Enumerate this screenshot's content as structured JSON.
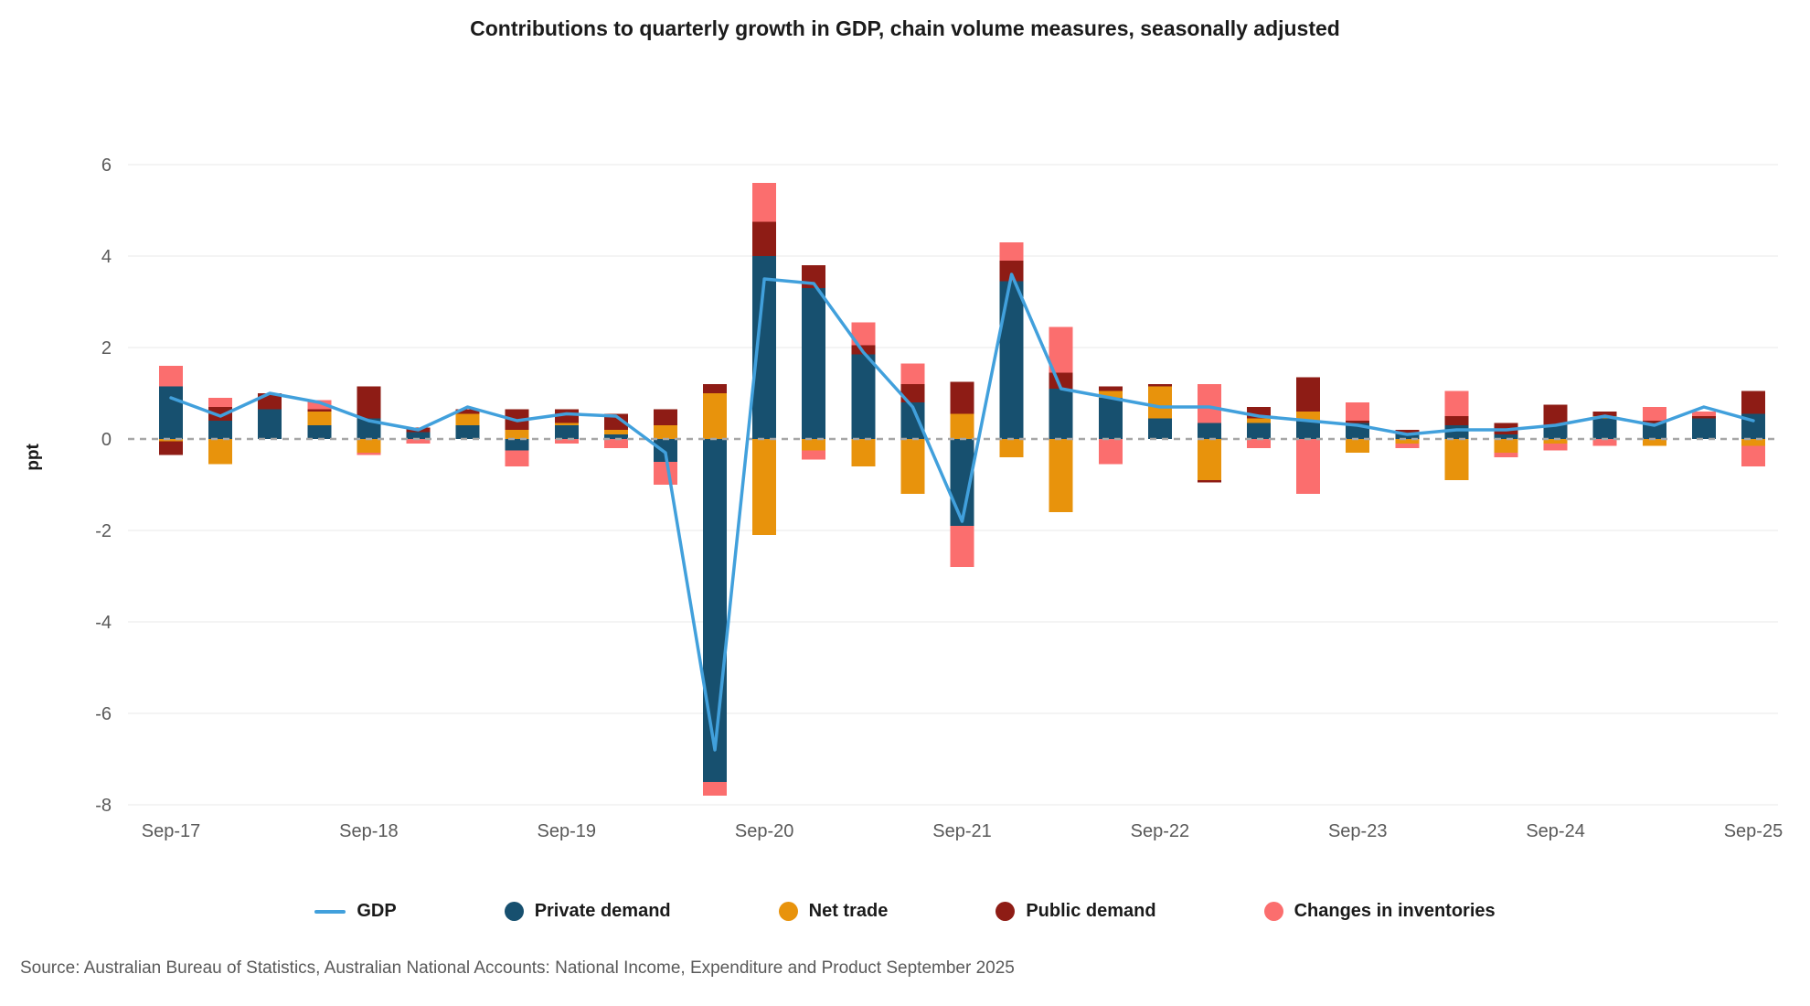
{
  "page": {
    "title": "Contributions to quarterly growth in GDP, chain volume measures, seasonally adjusted",
    "source": "Source: Australian Bureau of Statistics, Australian National Accounts: National Income, Expenditure and Product September 2025"
  },
  "chart_data": {
    "type": "bar",
    "subtype": "stacked-bars-with-line",
    "title": "Contributions to quarterly growth in GDP, chain volume measures, seasonally adjusted",
    "xlabel": "",
    "ylabel": "ppt",
    "ylim": [
      -8,
      6
    ],
    "yticks": [
      6,
      4,
      2,
      0,
      -2,
      -4,
      -6,
      -8
    ],
    "grid": true,
    "zero_line": true,
    "legend_position": "bottom",
    "categories": [
      "Sep-17",
      "Dec-17",
      "Mar-18",
      "Jun-18",
      "Sep-18",
      "Dec-18",
      "Mar-19",
      "Jun-19",
      "Sep-19",
      "Dec-19",
      "Mar-20",
      "Jun-20",
      "Sep-20",
      "Dec-20",
      "Mar-21",
      "Jun-21",
      "Sep-21",
      "Dec-21",
      "Mar-22",
      "Jun-22",
      "Sep-22",
      "Dec-22",
      "Mar-23",
      "Jun-23",
      "Sep-23",
      "Dec-23",
      "Mar-24",
      "Jun-24",
      "Sep-24",
      "Dec-24",
      "Mar-25",
      "Jun-25",
      "Sep-25"
    ],
    "xtick_labels_shown": [
      "Sep-17",
      "Sep-18",
      "Sep-19",
      "Sep-20",
      "Sep-21",
      "Sep-22",
      "Sep-23",
      "Sep-24",
      "Sep-25"
    ],
    "series": [
      {
        "name": "Private demand",
        "color": "#17506f",
        "values": [
          1.15,
          0.4,
          0.65,
          0.3,
          0.45,
          0.15,
          0.3,
          -0.25,
          0.3,
          0.1,
          -0.5,
          -7.5,
          4.0,
          3.3,
          1.85,
          0.8,
          -1.9,
          3.45,
          1.1,
          0.9,
          0.45,
          0.35,
          0.35,
          0.4,
          0.35,
          0.1,
          0.3,
          0.1,
          0.3,
          0.45,
          0.35,
          0.45,
          0.55
        ]
      },
      {
        "name": "Net trade",
        "color": "#e8930c",
        "values": [
          -0.05,
          -0.55,
          0.0,
          0.3,
          -0.3,
          0.0,
          0.25,
          0.2,
          0.05,
          0.1,
          0.3,
          1.0,
          -2.1,
          -0.25,
          -0.6,
          -1.2,
          0.55,
          -0.4,
          -1.6,
          0.15,
          0.7,
          -0.9,
          0.1,
          0.2,
          -0.3,
          -0.1,
          -0.9,
          -0.3,
          -0.1,
          0.05,
          -0.15,
          0.0,
          -0.15
        ]
      },
      {
        "name": "Public demand",
        "color": "#8e1c15",
        "values": [
          -0.3,
          0.3,
          0.35,
          0.05,
          0.7,
          0.1,
          0.1,
          0.45,
          0.3,
          0.35,
          0.35,
          0.2,
          0.75,
          0.5,
          0.2,
          0.4,
          0.7,
          0.45,
          0.35,
          0.1,
          0.05,
          -0.05,
          0.25,
          0.75,
          0.05,
          0.1,
          0.2,
          0.25,
          0.45,
          0.1,
          0.05,
          0.05,
          0.5
        ]
      },
      {
        "name": "Changes in inventories",
        "color": "#fb6e6e",
        "values": [
          0.45,
          0.2,
          0.0,
          0.2,
          -0.05,
          -0.1,
          0.0,
          -0.35,
          -0.1,
          -0.2,
          -0.5,
          -0.3,
          0.85,
          -0.2,
          0.5,
          0.45,
          -0.9,
          0.4,
          1.0,
          -0.55,
          0.0,
          0.85,
          -0.2,
          -1.2,
          0.4,
          -0.1,
          0.55,
          -0.1,
          -0.15,
          -0.15,
          0.3,
          0.1,
          -0.45
        ]
      }
    ],
    "line_series": {
      "name": "GDP",
      "color": "#41a0dc",
      "values": [
        0.9,
        0.5,
        1.0,
        0.8,
        0.4,
        0.2,
        0.7,
        0.4,
        0.55,
        0.5,
        -0.3,
        -6.8,
        3.5,
        3.4,
        1.9,
        0.7,
        -1.8,
        3.6,
        1.1,
        0.9,
        0.7,
        0.7,
        0.5,
        0.4,
        0.3,
        0.1,
        0.2,
        0.2,
        0.3,
        0.5,
        0.3,
        0.7,
        0.4
      ]
    },
    "legend": [
      {
        "label": "GDP",
        "color": "#41a0dc",
        "marker": "line"
      },
      {
        "label": "Private demand",
        "color": "#17506f",
        "marker": "circle"
      },
      {
        "label": "Net trade",
        "color": "#e8930c",
        "marker": "circle"
      },
      {
        "label": "Public demand",
        "color": "#8e1c15",
        "marker": "circle"
      },
      {
        "label": "Changes in inventories",
        "color": "#fb6e6e",
        "marker": "circle"
      }
    ],
    "colors": {
      "grid": "#e8e8e8",
      "zero_line": "#a6a6a6",
      "axis_text": "#595959"
    }
  }
}
